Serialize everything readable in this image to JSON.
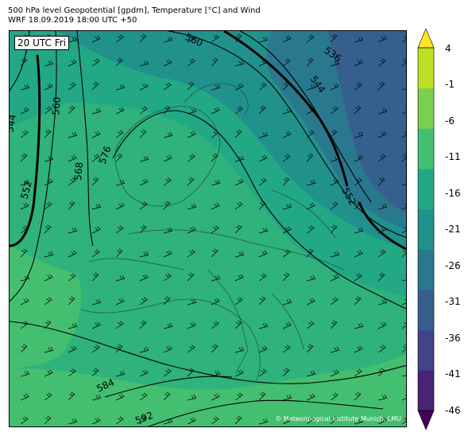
{
  "header": {
    "title_line1": "500 hPa level Geopotential [gpdm], Temperature [°C] and Wind",
    "title_line2": "WRF 18.09.2019 18:00 UTC +50"
  },
  "map": {
    "timestamp": "20 UTC Fri",
    "credit": "© Meteorological Institute Munich, LMU",
    "contour_labels": [
      "536",
      "544",
      "544",
      "552",
      "552",
      "560",
      "560",
      "568",
      "576",
      "584",
      "592"
    ]
  },
  "colorbar": {
    "ticks": [
      "4",
      "-1",
      "-6",
      "-11",
      "-16",
      "-21",
      "-26",
      "-31",
      "-36",
      "-41",
      "-46"
    ],
    "colors": [
      "#440154",
      "#482475",
      "#414487",
      "#355f8d",
      "#2a788e",
      "#21918c",
      "#22a884",
      "#44bf70",
      "#7ad151",
      "#bddf26",
      "#fde725"
    ]
  }
}
